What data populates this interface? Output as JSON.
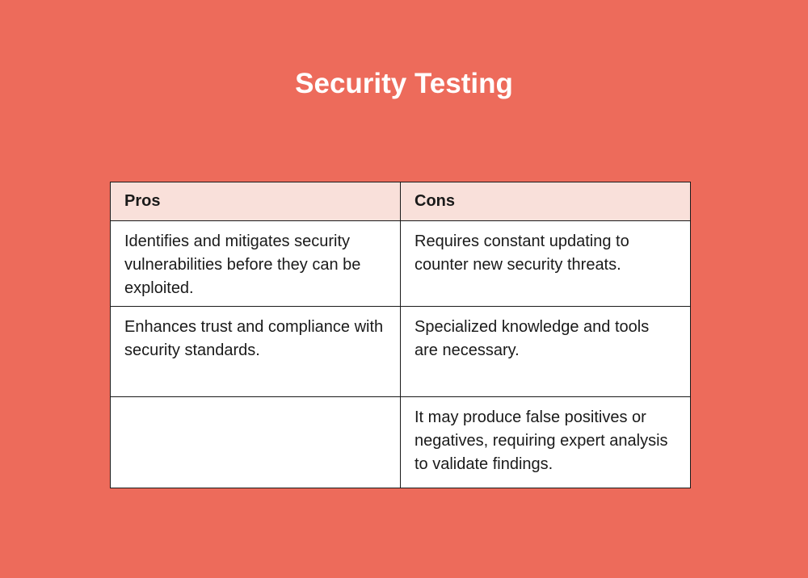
{
  "title": "Security Testing",
  "table": {
    "headers": [
      "Pros",
      "Cons"
    ],
    "rows": [
      [
        "Identifies and mitigates security vulnerabilities before they can be exploited.",
        "Requires constant updating to counter new security threats."
      ],
      [
        "Enhances trust and compliance with security standards.",
        "Specialized knowledge and tools are necessary."
      ],
      [
        "",
        "It may produce false positives or negatives, requiring expert analysis to validate findings."
      ]
    ]
  },
  "colors": {
    "background": "#ED6B5B",
    "header": "#F9E0DA"
  }
}
